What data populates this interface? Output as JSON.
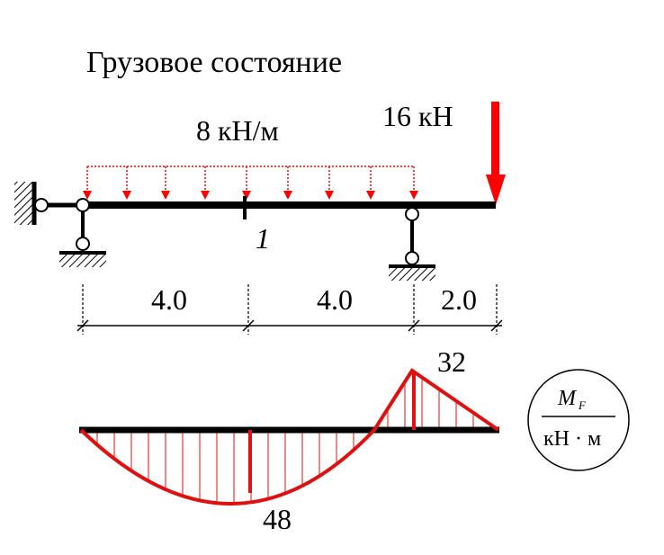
{
  "title": "Грузовое состояние",
  "loads": {
    "distributed": "8 кН/м",
    "point": "16 кН"
  },
  "section_label": "1",
  "dimensions": [
    "4.0",
    "4.0",
    "2.0"
  ],
  "moment_diagram": {
    "values": {
      "max_positive": "48",
      "max_negative": "32"
    },
    "legend": {
      "numerator": "M",
      "subscript": "F",
      "denominator": "кН · м"
    }
  },
  "colors": {
    "beam": "#000000",
    "load": "#ff0000",
    "diagram": "#e01010"
  }
}
